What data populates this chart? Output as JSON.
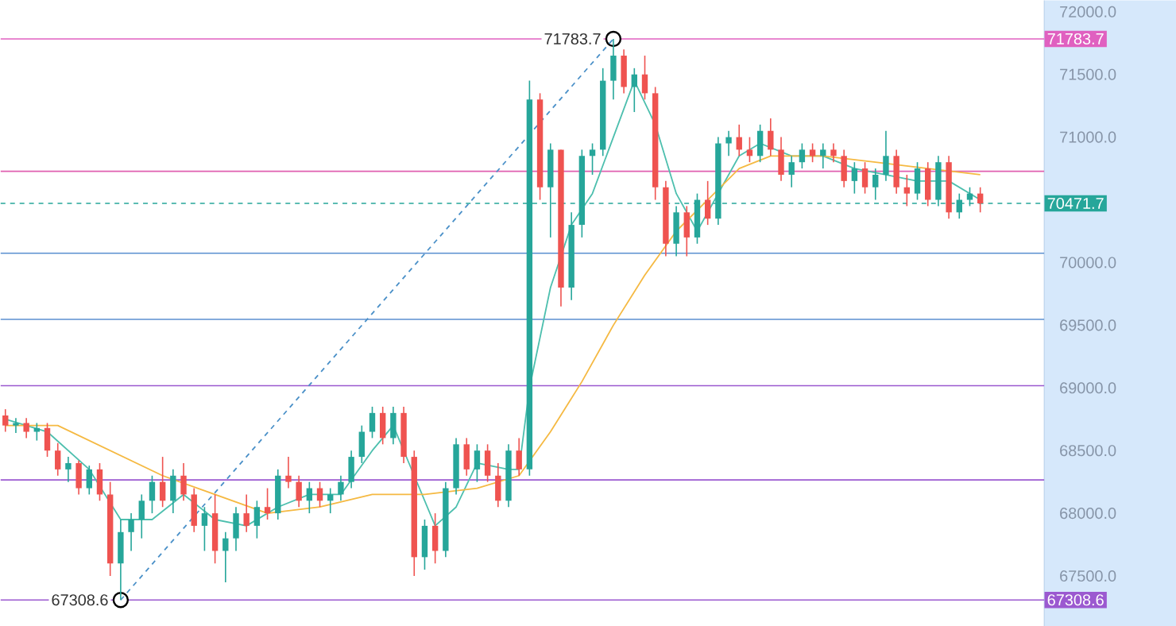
{
  "chart_data": {
    "type": "candlestick",
    "categories": [
      null,
      null,
      null,
      null,
      null,
      null,
      null,
      null,
      null,
      null,
      null,
      null,
      null,
      null,
      null,
      null,
      null,
      null,
      null,
      null,
      null,
      null,
      null,
      null,
      null,
      null,
      null,
      null,
      null,
      null,
      null,
      null,
      null,
      null,
      null,
      null,
      null,
      null,
      null,
      null,
      null,
      null,
      null,
      null,
      null,
      null,
      null,
      null,
      null,
      null,
      null,
      null,
      null,
      null,
      null,
      null,
      null,
      null,
      null,
      null,
      null,
      null,
      null,
      null,
      null,
      null,
      null,
      null,
      null,
      null,
      null,
      null,
      null,
      null,
      null,
      null,
      null,
      null,
      null,
      null,
      null,
      null,
      null,
      null,
      null,
      null,
      null,
      null,
      null,
      null,
      null,
      null,
      null,
      null
    ],
    "ohlc": [
      [
        68780,
        68830,
        68650,
        68700
      ],
      [
        68700,
        68760,
        68640,
        68720
      ],
      [
        68720,
        68760,
        68600,
        68650
      ],
      [
        68650,
        68720,
        68580,
        68680
      ],
      [
        68680,
        68720,
        68450,
        68500
      ],
      [
        68500,
        68560,
        68300,
        68350
      ],
      [
        68350,
        68450,
        68250,
        68400
      ],
      [
        68400,
        68420,
        68150,
        68200
      ],
      [
        68200,
        68380,
        68150,
        68350
      ],
      [
        68350,
        68400,
        68100,
        68150
      ],
      [
        68150,
        68250,
        67500,
        67600
      ],
      [
        67600,
        67950,
        67308.6,
        67850
      ],
      [
        67850,
        68000,
        67700,
        67950
      ],
      [
        67950,
        68150,
        67800,
        68100
      ],
      [
        68100,
        68300,
        68000,
        68250
      ],
      [
        68250,
        68450,
        68050,
        68100
      ],
      [
        68100,
        68350,
        68000,
        68300
      ],
      [
        68300,
        68400,
        68100,
        68150
      ],
      [
        68150,
        68200,
        67850,
        67900
      ],
      [
        67900,
        68050,
        67700,
        68000
      ],
      [
        68000,
        68150,
        67600,
        67700
      ],
      [
        67700,
        67850,
        67450,
        67800
      ],
      [
        67800,
        68050,
        67700,
        68000
      ],
      [
        68000,
        68150,
        67850,
        67900
      ],
      [
        67900,
        68100,
        67800,
        68050
      ],
      [
        68050,
        68200,
        67950,
        68000
      ],
      [
        68000,
        68350,
        67950,
        68300
      ],
      [
        68300,
        68450,
        68200,
        68250
      ],
      [
        68250,
        68300,
        68050,
        68100
      ],
      [
        68100,
        68250,
        68000,
        68200
      ],
      [
        68200,
        68250,
        68050,
        68100
      ],
      [
        68100,
        68200,
        68000,
        68150
      ],
      [
        68150,
        68300,
        68100,
        68250
      ],
      [
        68250,
        68500,
        68200,
        68450
      ],
      [
        68450,
        68700,
        68400,
        68650
      ],
      [
        68650,
        68850,
        68600,
        68800
      ],
      [
        68800,
        68850,
        68550,
        68600
      ],
      [
        68600,
        68850,
        68550,
        68800
      ],
      [
        68800,
        68850,
        68400,
        68450
      ],
      [
        68450,
        68500,
        67500,
        67650
      ],
      [
        67650,
        67950,
        67550,
        67900
      ],
      [
        67900,
        68000,
        67600,
        67700
      ],
      [
        67700,
        68250,
        67650,
        68200
      ],
      [
        68200,
        68600,
        68150,
        68550
      ],
      [
        68550,
        68600,
        68300,
        68350
      ],
      [
        68350,
        68550,
        68250,
        68500
      ],
      [
        68500,
        68550,
        68250,
        68300
      ],
      [
        68300,
        68400,
        68050,
        68100
      ],
      [
        68100,
        68550,
        68050,
        68500
      ],
      [
        68500,
        68600,
        68300,
        68350
      ],
      [
        68350,
        71450,
        68300,
        71300
      ],
      [
        71300,
        71350,
        70500,
        70600
      ],
      [
        70600,
        70950,
        70200,
        70900
      ],
      [
        70900,
        70900,
        69650,
        69800
      ],
      [
        69800,
        70400,
        69700,
        70300
      ],
      [
        70300,
        70900,
        70200,
        70850
      ],
      [
        70850,
        70950,
        70700,
        70900
      ],
      [
        70900,
        71550,
        70850,
        71450
      ],
      [
        71450,
        71783.7,
        71300,
        71650
      ],
      [
        71650,
        71700,
        71350,
        71400
      ],
      [
        71400,
        71550,
        71200,
        71500
      ],
      [
        71500,
        71650,
        71300,
        71350
      ],
      [
        71350,
        71400,
        70500,
        70600
      ],
      [
        70600,
        70650,
        70050,
        70150
      ],
      [
        70150,
        70450,
        70050,
        70400
      ],
      [
        70400,
        70450,
        70050,
        70200
      ],
      [
        70200,
        70550,
        70150,
        70500
      ],
      [
        70500,
        70650,
        70300,
        70350
      ],
      [
        70350,
        71000,
        70300,
        70950
      ],
      [
        70950,
        71050,
        70850,
        71000
      ],
      [
        71000,
        71100,
        70850,
        70900
      ],
      [
        70900,
        71000,
        70800,
        70850
      ],
      [
        70850,
        71100,
        70800,
        71050
      ],
      [
        71050,
        71150,
        70850,
        70900
      ],
      [
        70900,
        71000,
        70650,
        70700
      ],
      [
        70700,
        70850,
        70600,
        70800
      ],
      [
        70800,
        70950,
        70750,
        70900
      ],
      [
        70900,
        70950,
        70800,
        70850
      ],
      [
        70850,
        70950,
        70750,
        70900
      ],
      [
        70900,
        70950,
        70800,
        70850
      ],
      [
        70850,
        70900,
        70600,
        70650
      ],
      [
        70650,
        70800,
        70550,
        70750
      ],
      [
        70750,
        70800,
        70550,
        70600
      ],
      [
        70600,
        70750,
        70500,
        70700
      ],
      [
        70700,
        71050,
        70650,
        70850
      ],
      [
        70850,
        70900,
        70550,
        70600
      ],
      [
        70600,
        70700,
        70450,
        70550
      ],
      [
        70550,
        70800,
        70500,
        70750
      ],
      [
        70750,
        70800,
        70450,
        70500
      ],
      [
        70500,
        70850,
        70450,
        70800
      ],
      [
        70800,
        70850,
        70350,
        70400
      ],
      [
        70400,
        70550,
        70350,
        70500
      ],
      [
        70500,
        70600,
        70450,
        70550
      ],
      [
        70550,
        70600,
        70400,
        70471.7
      ]
    ],
    "series": [
      {
        "type": "line",
        "color": "#4dbfae",
        "values": [
          68750,
          null,
          null,
          null,
          68650,
          null,
          null,
          null,
          68350,
          null,
          null,
          67950,
          null,
          null,
          67950,
          null,
          null,
          68150,
          null,
          null,
          67950,
          null,
          null,
          67900,
          null,
          null,
          68050,
          null,
          null,
          68150,
          null,
          null,
          68150,
          null,
          null,
          68500,
          null,
          68700,
          null,
          68300,
          null,
          67900,
          null,
          68050,
          null,
          68400,
          null,
          null,
          68350,
          68350,
          69000,
          null,
          69800,
          null,
          70300,
          null,
          70550,
          null,
          71000,
          null,
          71450,
          null,
          71100,
          null,
          70550,
          null,
          70250,
          null,
          70550,
          null,
          70850,
          null,
          70950,
          null,
          null,
          70850,
          null,
          null,
          70850,
          null,
          null,
          70750,
          null,
          null,
          70700,
          null,
          null,
          70650,
          null,
          null,
          70650,
          null,
          null,
          70500
        ]
      },
      {
        "type": "line",
        "color": "#f5b942",
        "values": [
          68700,
          null,
          null,
          null,
          null,
          68700,
          null,
          null,
          null,
          null,
          68500,
          null,
          null,
          null,
          null,
          68300,
          null,
          null,
          null,
          null,
          68150,
          null,
          null,
          null,
          null,
          68000,
          null,
          null,
          null,
          null,
          68050,
          null,
          null,
          null,
          null,
          68150,
          null,
          null,
          null,
          null,
          68150,
          null,
          null,
          null,
          null,
          68200,
          null,
          null,
          null,
          68300,
          null,
          null,
          68650,
          null,
          null,
          69050,
          null,
          null,
          69500,
          null,
          null,
          69900,
          null,
          null,
          70250,
          null,
          null,
          70500,
          null,
          null,
          70750,
          null,
          null,
          70850,
          null,
          null,
          null,
          null,
          70850,
          null,
          null,
          null,
          null,
          70800,
          null,
          null,
          null,
          null,
          70750,
          null,
          null,
          null,
          null,
          70700
        ]
      },
      {
        "type": "line",
        "color": "#4a90c8",
        "line_style": "dashed",
        "marker": "circle",
        "values": [
          null,
          null,
          null,
          null,
          null,
          null,
          null,
          null,
          null,
          null,
          null,
          67308.6,
          null,
          null,
          null,
          null,
          null,
          null,
          null,
          null,
          null,
          null,
          null,
          null,
          null,
          null,
          null,
          null,
          null,
          null,
          null,
          null,
          null,
          null,
          null,
          null,
          null,
          null,
          null,
          null,
          null,
          null,
          null,
          null,
          null,
          null,
          null,
          null,
          null,
          null,
          null,
          null,
          null,
          null,
          null,
          null,
          null,
          null,
          71783.7,
          null,
          null,
          null,
          null,
          null,
          null,
          null,
          null,
          null,
          null,
          null,
          null,
          null,
          null,
          null,
          null,
          null,
          null,
          null,
          null,
          null,
          null,
          null,
          null,
          null,
          null,
          null,
          null,
          null,
          null,
          null,
          null,
          null,
          null,
          null
        ]
      }
    ],
    "ylim": [
      67100,
      72090
    ],
    "yticks": [
      {
        "value": 67500,
        "label": "67500.0"
      },
      {
        "value": 68000,
        "label": "68000.0"
      },
      {
        "value": 68500,
        "label": "68500.0"
      },
      {
        "value": 69000,
        "label": "69000.0"
      },
      {
        "value": 69500,
        "label": "69500.0"
      },
      {
        "value": 70000,
        "label": "70000.0"
      },
      {
        "value": 71000,
        "label": "71000.0"
      },
      {
        "value": 71500,
        "label": "71500.0"
      },
      {
        "value": 72000,
        "label": "72000.0"
      }
    ],
    "ref_lines": [
      {
        "axis": "y",
        "value": 71783.7,
        "label": "71783.7",
        "color": "#e060c0"
      },
      {
        "axis": "y",
        "value": 70727.6,
        "color": "#e060b0"
      },
      {
        "axis": "y",
        "value": 70074.2,
        "color": "#5b8fd0"
      },
      {
        "axis": "y",
        "value": 69546.2,
        "color": "#5b8fd0"
      },
      {
        "axis": "y",
        "value": 69018,
        "color": "#9b59d0"
      },
      {
        "axis": "y",
        "value": 68266,
        "color": "#9b59d0"
      },
      {
        "axis": "y",
        "value": 67308.6,
        "label": "67308.6",
        "color": "#9b59d0"
      },
      {
        "axis": "y",
        "value": 70471.7,
        "label": "70471.7",
        "color": "#26a69a",
        "line_style": "dashed"
      }
    ],
    "annotations": [
      {
        "text": "71783.7",
        "y": 71783.7
      },
      {
        "text": "67308.6",
        "y": 67308.6
      }
    ]
  }
}
